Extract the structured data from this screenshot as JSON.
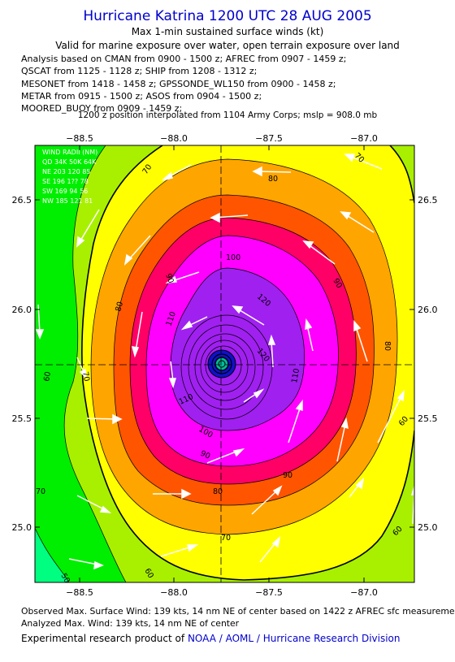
{
  "header": {
    "title": "Hurricane Katrina 1200 UTC 28 AUG 2005",
    "subtitle": "Max 1-min sustained surface winds (kt)",
    "validity": "Valid for marine exposure over water, open terrain exposure over land"
  },
  "analysis_sources": [
    "Analysis based on  CMAN from 0900 - 1500 z;  AFREC from 0907 - 1459 z;",
    "QSCAT from 1125 - 1128 z;  SHIP from 1208 - 1312 z;",
    "MESONET from 1418 - 1458 z;  GPSSONDE_WL150 from 0900 - 1458 z;",
    "METAR from 0915 - 1500 z;  ASOS from 0904 - 1500 z;",
    "MOORED_BUOY from 0909 - 1459 z;"
  ],
  "position_note": "1200 z position interpolated from 1104 Army Corps; mslp = 908.0 mb",
  "map": {
    "lon_ticks": [
      "−88.5",
      "−88.0",
      "−87.5",
      "−87.0"
    ],
    "lat_ticks": [
      "26.5",
      "26.0",
      "25.5",
      "25.0"
    ],
    "wind_radii_table": [
      "WIND RADII (NM)",
      "QD 34K 50K 64K",
      "NE 203 120 85",
      "SE 196 1?? 78",
      "SW 169 94 56",
      "NW 185 121 81"
    ],
    "contour_labels": [
      "50",
      "60",
      "60",
      "60",
      "60",
      "70",
      "70",
      "70",
      "70",
      "70",
      "80",
      "80",
      "80",
      "80",
      "90",
      "90",
      "90",
      "90",
      "100",
      "100",
      "110",
      "110",
      "110",
      "120",
      "120"
    ],
    "center": {
      "lon": -87.72,
      "lat": 25.75
    },
    "bounds": {
      "lon_min": -88.75,
      "lon_max": -86.75,
      "lat_min": 24.75,
      "lat_max": 26.75
    },
    "colors": {
      "lt50": "#00ff80",
      "lt60": "#00ee00",
      "lt70": "#a8f000",
      "lt80": "#ffff00",
      "lt90": "#ffa500",
      "lt100": "#ff5500",
      "lt110": "#ff0066",
      "lt120": "#ff00ff",
      "ge120": "#a020f0",
      "core": "#1010cc",
      "eye": "#00bb99"
    }
  },
  "footer": {
    "observed": "Observed Max. Surface Wind: 139 kts, 14 nm NE of center based on 1422 z AFREC sfc measurement",
    "analyzed": "Analyzed Max. Wind: 139 kts, 14 nm NE of center",
    "credit_prefix": "Experimental research product of",
    "credit_org": "NOAA / AOML / Hurricane Research Division"
  }
}
